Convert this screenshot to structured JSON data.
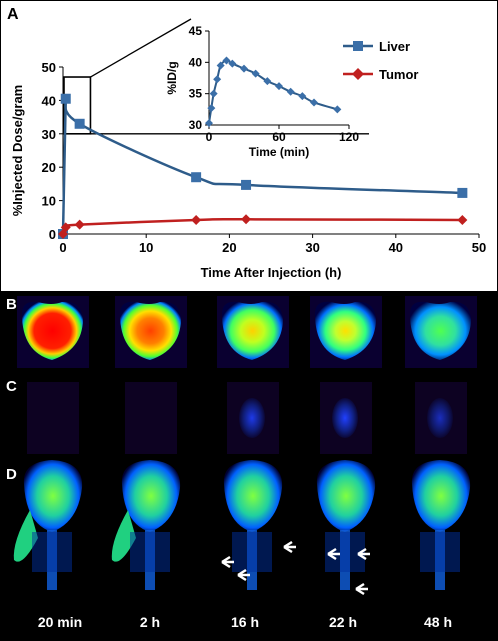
{
  "panels": {
    "a_letter": "A",
    "b_letter": "B",
    "c_letter": "C",
    "d_letter": "D"
  },
  "timepoints": [
    "20 min",
    "2 h",
    "16 h",
    "22 h",
    "48 h"
  ],
  "colors": {
    "liver": "#2e5c8a",
    "liver_marker": "#3b6fa8",
    "tumor": "#c0201f",
    "tumor_marker": "#c0201f"
  },
  "chart_data": [
    {
      "type": "line",
      "title": "",
      "xlabel": "Time After Injection (h)",
      "ylabel": "%Injected Dose/gram",
      "xlim": [
        0,
        50
      ],
      "ylim": [
        0,
        50
      ],
      "xticks": [
        0,
        10,
        20,
        30,
        40,
        50
      ],
      "yticks": [
        0,
        10,
        20,
        30,
        40,
        50
      ],
      "legend": "right",
      "series": [
        {
          "name": "Liver",
          "x": [
            0,
            0.33,
            2,
            16,
            22,
            48
          ],
          "y": [
            0,
            40.5,
            33,
            17,
            14.7,
            12.3
          ]
        },
        {
          "name": "Tumor",
          "x": [
            0,
            0.33,
            2,
            16,
            22,
            48
          ],
          "y": [
            0,
            2,
            2.8,
            4.2,
            4.4,
            4.2
          ]
        }
      ]
    },
    {
      "type": "line",
      "title": "",
      "xlabel": "Time (min)",
      "ylabel": "%ID/g",
      "xlim": [
        0,
        120
      ],
      "ylim": [
        30,
        45
      ],
      "xticks": [
        0,
        60,
        120
      ],
      "yticks": [
        30,
        35,
        40,
        45
      ],
      "series": [
        {
          "name": "Liver",
          "x": [
            0,
            2,
            4,
            7,
            10,
            15,
            20,
            30,
            40,
            50,
            60,
            70,
            80,
            90,
            110
          ],
          "y": [
            30.3,
            32.7,
            35,
            37.3,
            39.5,
            40.3,
            39.8,
            39,
            38.2,
            37,
            36.2,
            35.3,
            34.6,
            33.6,
            32.5
          ]
        }
      ]
    }
  ]
}
